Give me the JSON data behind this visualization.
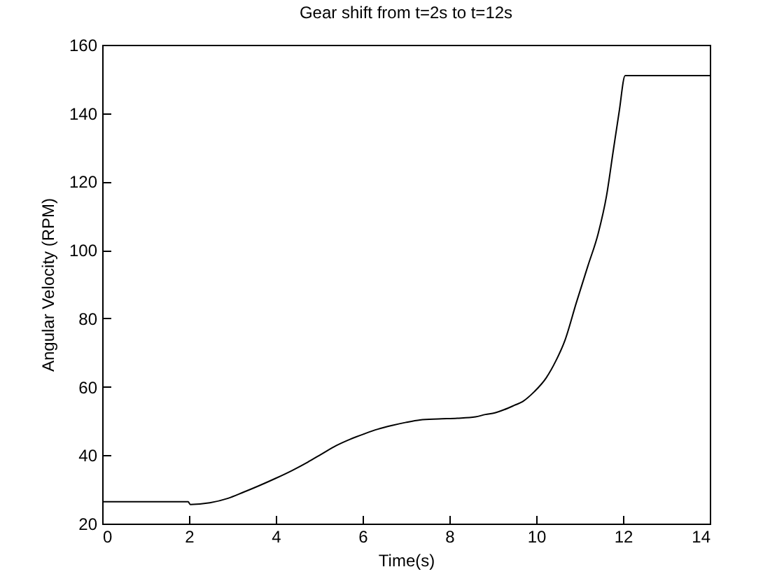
{
  "chart_data": {
    "type": "line",
    "title": "Gear shift from t=2s to t=12s",
    "xlabel": "Time(s)",
    "ylabel": "Angular Velocity (RPM)",
    "x": [
      0,
      1,
      1.98,
      2.03,
      2.48,
      2.9,
      3.24,
      3.6,
      3.99,
      4.37,
      4.74,
      5.05,
      5.39,
      5.7,
      6.03,
      6.35,
      6.68,
      7.0,
      7.32,
      7.75,
      8.18,
      8.6,
      8.83,
      9.05,
      9.26,
      9.5,
      9.69,
      9.95,
      10.23,
      10.45,
      10.66,
      10.92,
      11.19,
      11.43,
      11.62,
      11.78,
      11.91,
      12.05,
      13,
      14
    ],
    "values": [
      26.4,
      26.4,
      26.4,
      25.6,
      26.1,
      27.4,
      29.1,
      31.0,
      33.2,
      35.5,
      38.0,
      40.3,
      42.8,
      44.6,
      46.2,
      47.6,
      48.7,
      49.6,
      50.3,
      50.6,
      50.8,
      51.2,
      51.9,
      52.4,
      53.3,
      54.6,
      55.7,
      58.5,
      62.6,
      67.5,
      73.5,
      84.4,
      95.3,
      104.9,
      115.8,
      129.4,
      140.3,
      151,
      151,
      151
    ],
    "color": "#000000",
    "xlim": [
      0,
      14
    ],
    "ylim": [
      20,
      160
    ],
    "xticks": [
      0,
      2,
      4,
      6,
      8,
      10,
      12,
      14
    ],
    "yticks": [
      20,
      40,
      60,
      80,
      100,
      120,
      140,
      160
    ],
    "grid": false
  }
}
